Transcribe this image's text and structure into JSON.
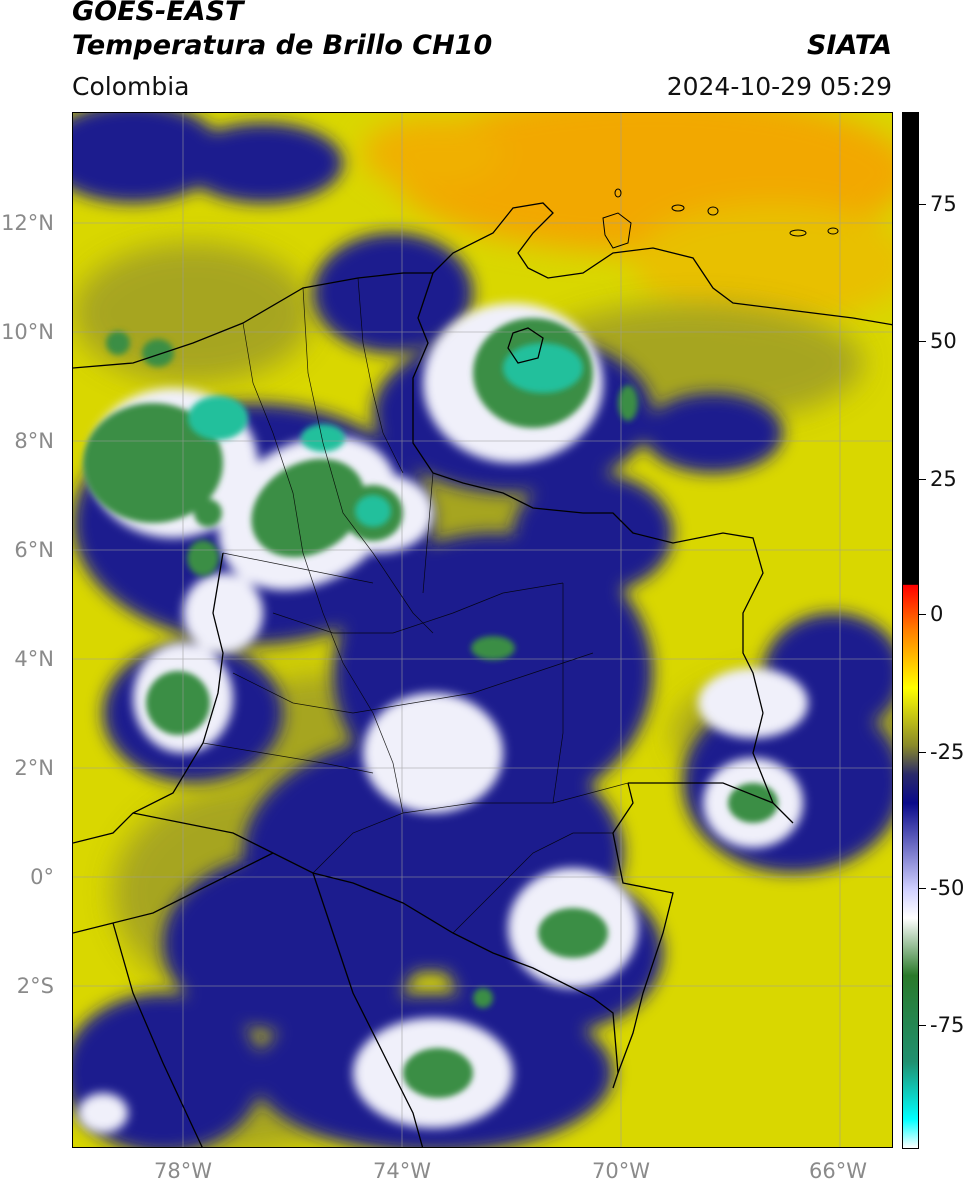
{
  "header": {
    "satellite": "GOES-EAST",
    "product": "Temperatura de Brillo CH10",
    "organization": "SIATA",
    "region": "Colombia",
    "datetime": "2024-10-29 05:29"
  },
  "map": {
    "lat_ticks": [
      "12°N",
      "10°N",
      "8°N",
      "6°N",
      "4°N",
      "2°N",
      "0°",
      "2°S"
    ],
    "lon_ticks": [
      "78°W",
      "74°W",
      "70°W",
      "66°W"
    ],
    "colors": {
      "warm_yellow": "#d8d800",
      "olive": "#9a9a20",
      "dark_blue": "#1a1a8c",
      "white_cloud": "#f2f2fa",
      "green_core": "#2e8c3c",
      "teal_core": "#22c4a0",
      "orange_sea": "#ffa500",
      "border_line": "#000000",
      "grid_line": "#a0a0a0"
    }
  },
  "colorbar": {
    "tick_labels": [
      "75",
      "50",
      "25",
      "0",
      "-25",
      "-50",
      "-75"
    ],
    "units": "",
    "stops": [
      {
        "value": 90,
        "color": "#000000"
      },
      {
        "value": 8,
        "color": "#000000"
      },
      {
        "value": 7.9,
        "color": "#ff0000"
      },
      {
        "value": 0,
        "color": "#ff8000"
      },
      {
        "value": -10,
        "color": "#ffff00"
      },
      {
        "value": -20,
        "color": "#8a8a2a"
      },
      {
        "value": -25,
        "color": "#2a2a6a"
      },
      {
        "value": -30,
        "color": "#0a0a8a"
      },
      {
        "value": -45,
        "color": "#d0d0ff"
      },
      {
        "value": -50,
        "color": "#ffffff"
      },
      {
        "value": -60,
        "color": "#2a7a2a"
      },
      {
        "value": -75,
        "color": "#209070"
      },
      {
        "value": -85,
        "color": "#00ffff"
      },
      {
        "value": -90,
        "color": "#ffffff"
      }
    ]
  }
}
